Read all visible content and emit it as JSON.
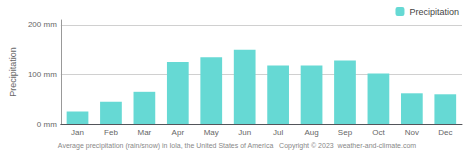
{
  "chart_data": {
    "type": "bar",
    "subtitle": "Average precipitation (rain/snow) in Iola, the United States of America   Copyright © 2023  weather-and-climate.com",
    "y_label": "Precipitation",
    "categories": [
      "Jan",
      "Feb",
      "Mar",
      "Apr",
      "May",
      "Jun",
      "Jul",
      "Aug",
      "Sep",
      "Oct",
      "Nov",
      "Dec"
    ],
    "series": [
      {
        "name": "Precipitation",
        "color": "#66d9d4",
        "values": [
          25,
          45,
          65,
          125,
          135,
          150,
          118,
          118,
          128,
          102,
          62,
          60
        ]
      }
    ],
    "ylim": [
      0,
      210
    ],
    "yticks": [
      {
        "value": 0,
        "label": "0 mm"
      },
      {
        "value": 100,
        "label": "100 mm"
      },
      {
        "value": 200,
        "label": "200 mm"
      }
    ],
    "grid": true,
    "legend": "upper right"
  }
}
